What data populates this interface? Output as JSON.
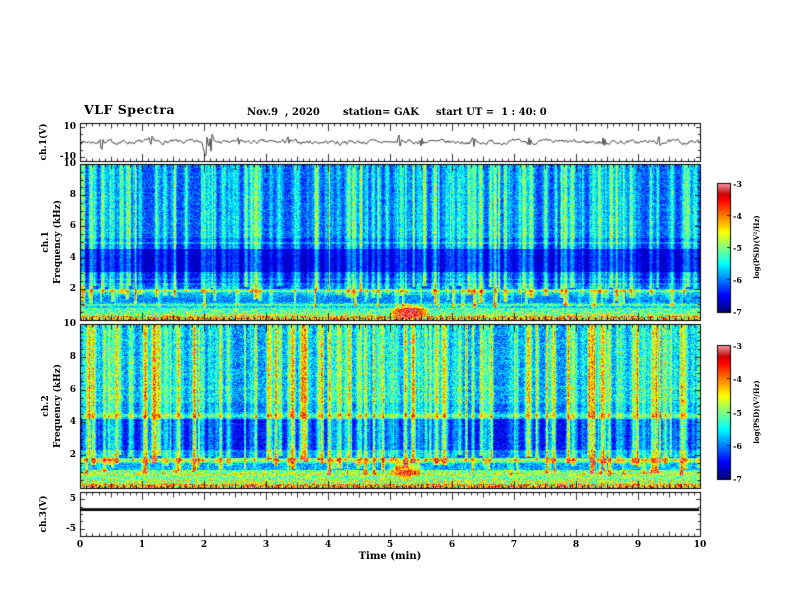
{
  "header": {
    "title": "VLF Spectra",
    "date": "Nov.9  , 2020",
    "station": "station= GAK",
    "start_ut": "start UT =  1 : 40: 0"
  },
  "axes": {
    "time_label": "Time (min)",
    "frequency": "Frequency (kHz)",
    "ch1": "ch.1",
    "ch2": "ch.2",
    "ch1_voltage": "ch.1(V)",
    "ch3_voltage": "ch.3(V)",
    "psd": "log(PSD)(V²/Hz)"
  },
  "chart_data": {
    "type": "heatmap",
    "title": "VLF Spectra",
    "station": "GAK",
    "date": "Nov.9 , 2020",
    "start_ut": "1 : 40: 0",
    "x": {
      "label": "Time (min)",
      "min": 0,
      "max": 10,
      "major_ticks": [
        0,
        1,
        2,
        3,
        4,
        5,
        6,
        7,
        8,
        9,
        10
      ],
      "minor_step": 0.1
    },
    "colorbar": {
      "label": "log(PSD)(V²/Hz)",
      "min": -7,
      "max": -3,
      "ticks": [
        -3,
        -4,
        -5,
        -6,
        -7
      ],
      "colormap": "jet"
    },
    "panels": [
      {
        "id": "ch1-waveform",
        "ylabel": "ch.1(V)",
        "type": "waveform",
        "ymin": -12.5,
        "ymax": 12.5,
        "yticks": [
          10,
          -10
        ],
        "noise_amp": 1.8,
        "seed": 7,
        "spikes": [
          {
            "t": 0.35,
            "amp": 4
          },
          {
            "t": 1.15,
            "amp": 3.2
          },
          {
            "t": 2.02,
            "amp": 8.5
          },
          {
            "t": 2.12,
            "amp": 6
          },
          {
            "t": 2.55,
            "amp": 3
          },
          {
            "t": 3.35,
            "amp": 3.4
          },
          {
            "t": 4.2,
            "amp": 3
          },
          {
            "t": 5.15,
            "amp": 4.5
          },
          {
            "t": 5.5,
            "amp": 3
          },
          {
            "t": 6.35,
            "amp": 3
          },
          {
            "t": 7.25,
            "amp": 3.4
          },
          {
            "t": 8.45,
            "amp": 3
          },
          {
            "t": 9.35,
            "amp": 3.2
          }
        ]
      },
      {
        "id": "ch1-spectrogram",
        "ylabel": [
          "ch.1",
          "Frequency (kHz)"
        ],
        "type": "spectrogram",
        "fmin": 0,
        "fmax": 10,
        "yticks": [
          2,
          4,
          6,
          8,
          10
        ],
        "seed": 42,
        "bands": [
          [
            0,
            0.2,
            0.66,
            0.28
          ],
          [
            0.2,
            0.45,
            0.55,
            0.2
          ],
          [
            0.45,
            0.75,
            0.46,
            0.15
          ],
          [
            0.75,
            1.1,
            0.34,
            0.12
          ],
          [
            1.1,
            1.6,
            0.27,
            0.1
          ],
          [
            1.6,
            2.0,
            0.34,
            0.12
          ],
          [
            2.0,
            2.4,
            0.2,
            0.1
          ],
          [
            2.4,
            3.1,
            0.13,
            0.08
          ],
          [
            3.1,
            4.6,
            0.07,
            0.05
          ],
          [
            4.6,
            5.3,
            0.14,
            0.08
          ],
          [
            5.3,
            10.01,
            0.2,
            0.09
          ]
        ],
        "hlines": [
          {
            "f": 1.85,
            "boost": 0.14,
            "hw": 0.08
          },
          {
            "f": 0.95,
            "boost": 0.1,
            "hw": 0.07
          },
          {
            "f": 4.95,
            "boost": 0.09,
            "hw": 0.06
          },
          {
            "f": 2.6,
            "boost": 0.08,
            "hw": 0.05
          }
        ],
        "streaks": {
          "count": 170,
          "strength": [
            0.12,
            0.6
          ],
          "width": [
            0.6,
            2.2
          ],
          "fstart": [
            0.7,
            2.2
          ]
        },
        "events": [
          {
            "t": 5.3,
            "f": 0.5,
            "rt": 0.35,
            "rf": 0.55,
            "boost": 0.5
          }
        ]
      },
      {
        "id": "ch2-spectrogram",
        "ylabel": [
          "ch.2",
          "Frequency (kHz)"
        ],
        "type": "spectrogram",
        "fmin": 0,
        "fmax": 10,
        "yticks": [
          2,
          4,
          6,
          8,
          10
        ],
        "seed": 1337,
        "bands": [
          [
            0,
            0.2,
            0.7,
            0.28
          ],
          [
            0.2,
            0.5,
            0.56,
            0.2
          ],
          [
            0.5,
            1.05,
            0.5,
            0.17
          ],
          [
            1.05,
            1.5,
            0.3,
            0.12
          ],
          [
            1.5,
            1.85,
            0.42,
            0.13
          ],
          [
            1.85,
            2.3,
            0.22,
            0.1
          ],
          [
            2.3,
            4.2,
            0.12,
            0.08
          ],
          [
            4.2,
            4.65,
            0.28,
            0.11
          ],
          [
            4.65,
            5.2,
            0.22,
            0.1
          ],
          [
            5.2,
            10.01,
            0.27,
            0.12
          ]
        ],
        "hlines": [
          {
            "f": 1.7,
            "boost": 0.12,
            "hw": 0.08
          },
          {
            "f": 4.45,
            "boost": 0.1,
            "hw": 0.07
          },
          {
            "f": 6.1,
            "boost": 0.06,
            "hw": 0.05
          },
          {
            "f": 0.85,
            "boost": 0.1,
            "hw": 0.07
          }
        ],
        "streaks": {
          "count": 200,
          "strength": [
            0.18,
            0.75
          ],
          "width": [
            0.6,
            2.4
          ],
          "fstart": [
            0.7,
            2.0
          ]
        },
        "events": [
          {
            "t": 5.25,
            "f": 1.1,
            "rt": 0.3,
            "rf": 0.6,
            "boost": 0.4
          }
        ]
      },
      {
        "id": "ch3-waveform",
        "ylabel": "ch.3(V)",
        "type": "flat",
        "ymin": -7.5,
        "ymax": 7.5,
        "yticks": [
          5,
          -5
        ],
        "value": 1.5,
        "line_width": 2.6
      }
    ]
  }
}
